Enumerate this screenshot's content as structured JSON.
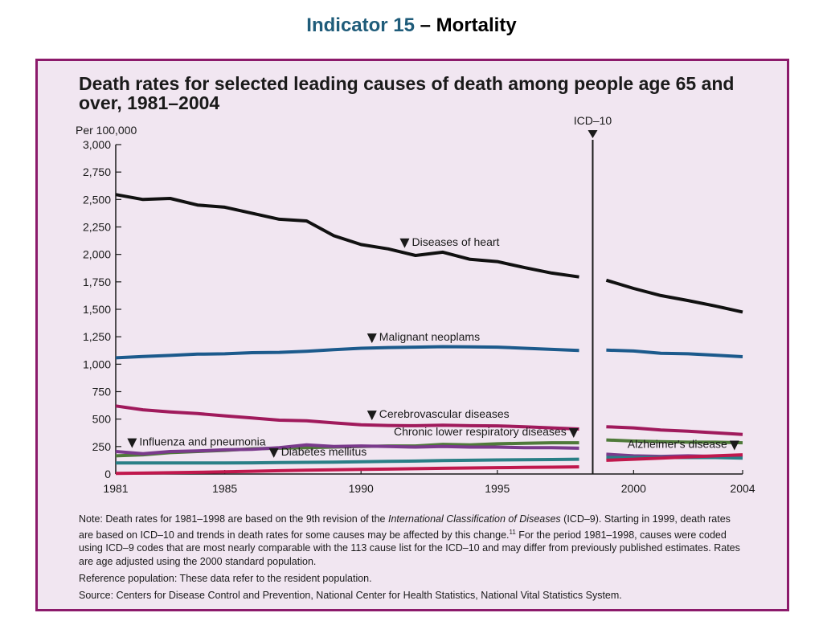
{
  "slide": {
    "title_prefix": "Indicator 15",
    "title_suffix": " – Mortality"
  },
  "chart_data": {
    "type": "line",
    "title": "Death rates for selected leading causes of death among people age 65 and over, 1981–2004",
    "ylabel": "Per 100,000",
    "xlim": [
      1981,
      2004
    ],
    "ylim": [
      0,
      3000
    ],
    "x_ticks": [
      "1981",
      "1985",
      "1990",
      "1995",
      "2000",
      "2004"
    ],
    "y_ticks": [
      "0",
      "250",
      "500",
      "750",
      "1,000",
      "1,250",
      "1,500",
      "1,750",
      "2,000",
      "2,250",
      "2,500",
      "2,750",
      "3,000"
    ],
    "grid": false,
    "break_marker": {
      "label": "ICD–10",
      "x": 1998.5
    },
    "series": [
      {
        "name": "Diseases of heart",
        "color": "#111111",
        "x": [
          1981,
          1982,
          1983,
          1984,
          1985,
          1986,
          1987,
          1988,
          1989,
          1990,
          1991,
          1992,
          1993,
          1994,
          1995,
          1996,
          1997,
          1998,
          1999,
          2000,
          2001,
          2002,
          2003,
          2004
        ],
        "y": [
          2545,
          2500,
          2510,
          2450,
          2430,
          2375,
          2320,
          2305,
          2170,
          2090,
          2050,
          1990,
          2020,
          1955,
          1935,
          1880,
          1830,
          1795,
          1765,
          1690,
          1625,
          1580,
          1530,
          1475
        ]
      },
      {
        "name": "Malignant neoplams",
        "color": "#1c5a8c",
        "x": [
          1981,
          1982,
          1983,
          1984,
          1985,
          1986,
          1987,
          1988,
          1989,
          1990,
          1991,
          1992,
          1993,
          1994,
          1995,
          1996,
          1997,
          1998,
          1999,
          2000,
          2001,
          2002,
          2003,
          2004
        ],
        "y": [
          1058,
          1070,
          1080,
          1092,
          1095,
          1105,
          1108,
          1118,
          1132,
          1145,
          1152,
          1155,
          1160,
          1158,
          1155,
          1145,
          1135,
          1125,
          1128,
          1120,
          1100,
          1095,
          1082,
          1068
        ]
      },
      {
        "name": "Cerebrovascular diseases",
        "color": "#a01a5c",
        "x": [
          1981,
          1982,
          1983,
          1984,
          1985,
          1986,
          1987,
          1988,
          1989,
          1990,
          1991,
          1992,
          1993,
          1994,
          1995,
          1996,
          1997,
          1998,
          1999,
          2000,
          2001,
          2002,
          2003,
          2004
        ],
        "y": [
          620,
          585,
          565,
          550,
          530,
          510,
          490,
          485,
          465,
          448,
          442,
          440,
          445,
          440,
          438,
          430,
          420,
          410,
          430,
          420,
          400,
          390,
          375,
          360
        ]
      },
      {
        "name": "Chronic lower respiratory diseases",
        "color": "#4f7a3a",
        "x": [
          1981,
          1982,
          1983,
          1984,
          1985,
          1986,
          1987,
          1988,
          1989,
          1990,
          1991,
          1992,
          1993,
          1994,
          1995,
          1996,
          1997,
          1998,
          1999,
          2000,
          2001,
          2002,
          2003,
          2004
        ],
        "y": [
          165,
          175,
          195,
          205,
          215,
          230,
          235,
          240,
          245,
          250,
          255,
          255,
          270,
          265,
          275,
          280,
          285,
          285,
          310,
          300,
          295,
          290,
          290,
          285
        ]
      },
      {
        "name": "Influenza and pneumonia",
        "color": "#7a3a8c",
        "x": [
          1981,
          1982,
          1983,
          1984,
          1985,
          1986,
          1987,
          1988,
          1989,
          1990,
          1991,
          1992,
          1993,
          1994,
          1995,
          1996,
          1997,
          1998,
          1999,
          2000,
          2001,
          2002,
          2003,
          2004
        ],
        "y": [
          205,
          185,
          205,
          210,
          220,
          225,
          240,
          265,
          250,
          255,
          250,
          245,
          250,
          245,
          245,
          240,
          240,
          235,
          180,
          165,
          160,
          165,
          160,
          155
        ]
      },
      {
        "name": "Diabetes mellitus",
        "color": "#2a7f86",
        "x": [
          1981,
          1982,
          1983,
          1984,
          1985,
          1986,
          1987,
          1988,
          1989,
          1990,
          1991,
          1992,
          1993,
          1994,
          1995,
          1996,
          1997,
          1998,
          1999,
          2000,
          2001,
          2002,
          2003,
          2004
        ],
        "y": [
          100,
          100,
          100,
          100,
          100,
          102,
          104,
          106,
          108,
          112,
          115,
          118,
          122,
          125,
          128,
          130,
          132,
          135,
          150,
          150,
          150,
          150,
          150,
          145
        ]
      },
      {
        "name": "Alzheimer's disease",
        "color": "#c0184d",
        "x": [
          1981,
          1982,
          1983,
          1984,
          1985,
          1986,
          1987,
          1988,
          1989,
          1990,
          1991,
          1992,
          1993,
          1994,
          1995,
          1996,
          1997,
          1998,
          1999,
          2000,
          2001,
          2002,
          2003,
          2004
        ],
        "y": [
          5,
          8,
          12,
          15,
          20,
          25,
          30,
          35,
          38,
          42,
          45,
          48,
          52,
          55,
          58,
          60,
          62,
          65,
          125,
          135,
          145,
          155,
          165,
          175
        ]
      }
    ],
    "annotations": [
      {
        "text": "Diseases of heart",
        "series": 0,
        "x": 1991.6
      },
      {
        "text": "Malignant neoplams",
        "series": 1,
        "x": 1990.4
      },
      {
        "text": "Cerebrovascular diseases",
        "series": 2,
        "x": 1990.4
      },
      {
        "text": "Chronic lower respiratory diseases",
        "series": 3,
        "x": 1997.8
      },
      {
        "text": "Influenza and pneumonia",
        "series": 4,
        "x": 1981.6
      },
      {
        "text": "Diabetes mellitus",
        "series": 5,
        "x": 1986.8
      },
      {
        "text": "Alzheimer's disease",
        "series": 6,
        "x": 2003.7
      }
    ]
  },
  "notes": {
    "note_a": "Note: Death rates for 1981–1998 are based on the 9th revision of the ",
    "note_b": "International Classification of Diseases",
    "note_c": " (ICD–9). Starting in 1999, death rates are based on ICD–10 and trends in death rates for some causes may be affected by this change.",
    "note_d": "11",
    "note_e": " For the period 1981–1998, causes were coded using ICD–9 codes that are most nearly comparable with the 113 cause list for the ICD–10 and may differ from previously published estimates. Rates are age adjusted using the 2000 standard population.",
    "reference": "Reference population: These data refer to the resident population.",
    "source": "Source: Centers for Disease Control and Prevention, National Center for Health Statistics, National Vital Statistics System."
  }
}
